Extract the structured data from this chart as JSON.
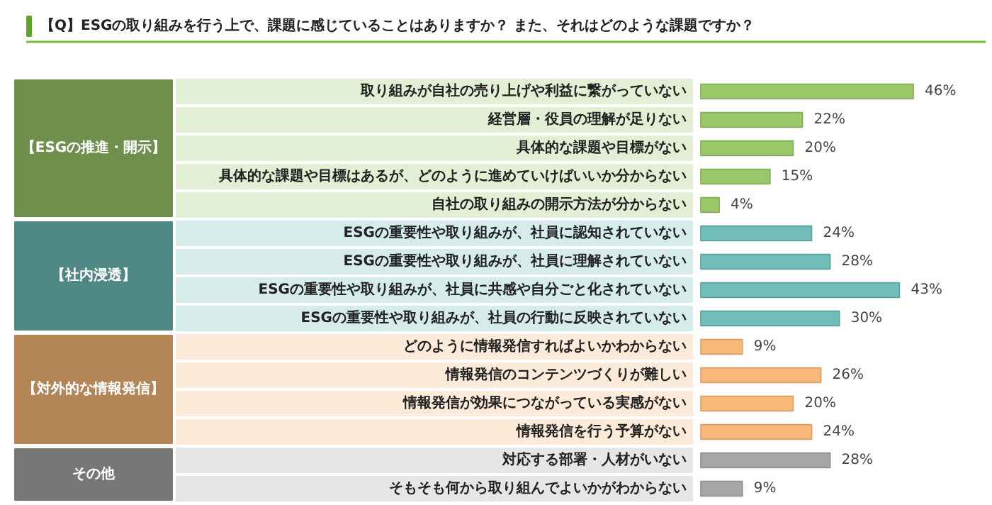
{
  "chart_data": {
    "type": "bar",
    "orientation": "horizontal",
    "title": "【Q】ESGの取り組みを行う上で、課題に感じていることはありますか？ また、それはどのような課題ですか？",
    "categories": [
      "取り組みが自社の売り上げや利益に繋がっていない",
      "経営層・役員の理解が足りない",
      "具体的な課題や目標がない",
      "具体的な課題や目標はあるが、どのように進めていけばいいか分からない",
      "自社の取り組みの開示方法が分からない",
      "ESGの重要性や取り組みが、社員に認知されていない",
      "ESGの重要性や取り組みが、社員に理解されていない",
      "ESGの重要性や取り組みが、社員に共感や自分ごと化されていない",
      "ESGの重要性や取り組みが、社員の行動に反映されていない",
      "どのように情報発信すればよいかわからない",
      "情報発信のコンテンツづくりが難しい",
      "情報発信が効果につながっている実感がない",
      "情報発信を行う予算がない",
      "対応する部署・人材がいない",
      "そもそも何から取り組んでよいかがわからない"
    ],
    "values": [
      46,
      22,
      20,
      15,
      4,
      24,
      28,
      43,
      30,
      9,
      26,
      20,
      24,
      28,
      9
    ],
    "value_labels": [
      "46%",
      "22%",
      "20%",
      "15%",
      "4%",
      "24%",
      "28%",
      "43%",
      "30%",
      "9%",
      "26%",
      "20%",
      "24%",
      "28%",
      "9%"
    ],
    "colors": [
      "#9bc96a",
      "#9bc96a",
      "#9bc96a",
      "#9bc96a",
      "#9bc96a",
      "#6fbcb8",
      "#6fbcb8",
      "#6fbcb8",
      "#6fbcb8",
      "#f9b97a",
      "#f9b97a",
      "#f9b97a",
      "#f9b97a",
      "#a6a6a6",
      "#a6a6a6"
    ],
    "annotations": [
      "【ESGの推進・開示】",
      "【社内浸透】",
      "【対外的な情報発信】",
      "その他"
    ]
  }
}
